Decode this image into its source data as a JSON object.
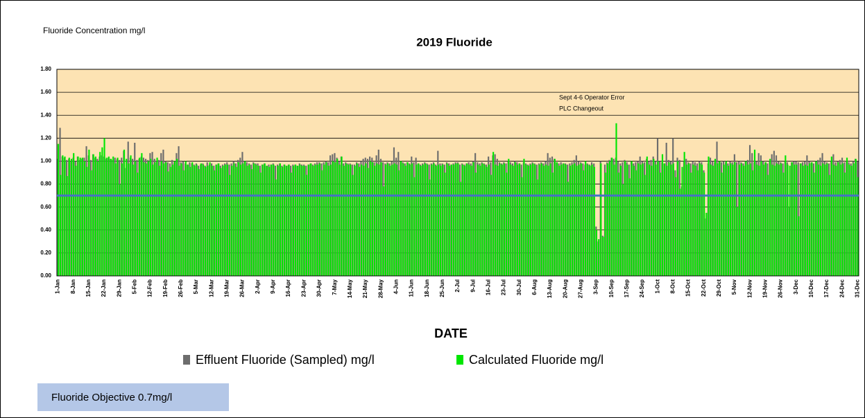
{
  "chart_data": {
    "type": "bar",
    "title": "2019 Fluoride",
    "y_label": "Fluoride Concentration mg/l",
    "x_label": "DATE",
    "annotations": [
      "Sept 4-6 Operator  Error",
      "PLC Changeout"
    ],
    "objective": {
      "label": "Fluoride Objective 0.7mg/l",
      "value": 0.7,
      "color": "#4472c4"
    },
    "ylim": [
      0,
      1.8
    ],
    "yticks": [
      {
        "value": 0,
        "label": "0.00"
      },
      {
        "value": 0.2,
        "label": "0.20"
      },
      {
        "value": 0.4,
        "label": "0.40"
      },
      {
        "value": 0.6,
        "label": "0.60"
      },
      {
        "value": 0.8,
        "label": "0.80"
      },
      {
        "value": 1,
        "label": "1.00"
      },
      {
        "value": 1.2,
        "label": "1.20"
      },
      {
        "value": 1.4,
        "label": "1.40"
      },
      {
        "value": 1.6,
        "label": "1.60"
      },
      {
        "value": 1.8,
        "label": "1.80"
      }
    ],
    "grid": true,
    "categories": [
      "1-Jan",
      null,
      null,
      null,
      null,
      null,
      null,
      "8-Jan",
      null,
      null,
      null,
      null,
      null,
      null,
      "15-Jan",
      null,
      null,
      null,
      null,
      null,
      null,
      "22-Jan",
      null,
      null,
      null,
      null,
      null,
      null,
      "29-Jan",
      null,
      null,
      null,
      null,
      null,
      null,
      "5-Feb",
      null,
      null,
      null,
      null,
      null,
      null,
      "12-Feb",
      null,
      null,
      null,
      null,
      null,
      null,
      "19-Feb",
      null,
      null,
      null,
      null,
      null,
      null,
      "26-Feb",
      null,
      null,
      null,
      null,
      null,
      null,
      "5-Mar",
      null,
      null,
      null,
      null,
      null,
      null,
      "12-Mar",
      null,
      null,
      null,
      null,
      null,
      null,
      "19-Mar",
      null,
      null,
      null,
      null,
      null,
      null,
      "26-Mar",
      null,
      null,
      null,
      null,
      null,
      null,
      "2-Apr",
      null,
      null,
      null,
      null,
      null,
      null,
      "9-Apr",
      null,
      null,
      null,
      null,
      null,
      null,
      "16-Apr",
      null,
      null,
      null,
      null,
      null,
      null,
      "23-Apr",
      null,
      null,
      null,
      null,
      null,
      null,
      "30-Apr",
      null,
      null,
      null,
      null,
      null,
      null,
      "7-May",
      null,
      null,
      null,
      null,
      null,
      null,
      "14-May",
      null,
      null,
      null,
      null,
      null,
      null,
      "21-May",
      null,
      null,
      null,
      null,
      null,
      null,
      "28-May",
      null,
      null,
      null,
      null,
      null,
      null,
      "4-Jun",
      null,
      null,
      null,
      null,
      null,
      null,
      "11-Jun",
      null,
      null,
      null,
      null,
      null,
      null,
      "18-Jun",
      null,
      null,
      null,
      null,
      null,
      null,
      "25-Jun",
      null,
      null,
      null,
      null,
      null,
      null,
      "2-Jul",
      null,
      null,
      null,
      null,
      null,
      null,
      "9-Jul",
      null,
      null,
      null,
      null,
      null,
      null,
      "16-Jul",
      null,
      null,
      null,
      null,
      null,
      null,
      "23-Jul",
      null,
      null,
      null,
      null,
      null,
      null,
      "30-Jul",
      null,
      null,
      null,
      null,
      null,
      null,
      "6-Aug",
      null,
      null,
      null,
      null,
      null,
      null,
      "13-Aug",
      null,
      null,
      null,
      null,
      null,
      null,
      "20-Aug",
      null,
      null,
      null,
      null,
      null,
      null,
      "27-Aug",
      null,
      null,
      null,
      null,
      null,
      null,
      "3-Sep",
      null,
      null,
      null,
      null,
      null,
      null,
      "10-Sep",
      null,
      null,
      null,
      null,
      null,
      null,
      "17-Sep",
      null,
      null,
      null,
      null,
      null,
      null,
      "24-Sep",
      null,
      null,
      null,
      null,
      null,
      null,
      "1-Oct",
      null,
      null,
      null,
      null,
      null,
      null,
      "8-Oct",
      null,
      null,
      null,
      null,
      null,
      null,
      "15-Oct",
      null,
      null,
      null,
      null,
      null,
      null,
      "22-Oct",
      null,
      null,
      null,
      null,
      null,
      null,
      "29-Oct",
      null,
      null,
      null,
      null,
      null,
      null,
      "5-Nov",
      null,
      null,
      null,
      null,
      null,
      null,
      "12-Nov",
      null,
      null,
      null,
      null,
      null,
      null,
      "19-Nov",
      null,
      null,
      null,
      null,
      null,
      null,
      "26-Nov",
      null,
      null,
      null,
      null,
      null,
      null,
      "3-Dec",
      null,
      null,
      null,
      null,
      null,
      null,
      "10-Dec",
      null,
      null,
      null,
      null,
      null,
      null,
      "17-Dec",
      null,
      null,
      null,
      null,
      null,
      null,
      "24-Dec",
      null,
      null,
      null,
      null,
      null,
      null,
      "31-Dec"
    ],
    "series": [
      {
        "name": "Effluent Fluoride (Sampled) mg/l",
        "color": "#6d6d6d",
        "values": [
          1.02,
          1.29,
          1.04,
          1.03,
          1.01,
          1.02,
          1.0,
          1.03,
          1.0,
          1.04,
          1.01,
          1.02,
          1.03,
          1.13,
          1.05,
          1.01,
          1.06,
          1.03,
          1.02,
          1.04,
          1.05,
          1.04,
          1.02,
          1.03,
          1.02,
          1.01,
          1.03,
          1.02,
          1.01,
          1.03,
          1.09,
          0.94,
          1.17,
          1.03,
          1.02,
          1.16,
          1.01,
          1.02,
          1.04,
          1.03,
          1.02,
          1.01,
          1.07,
          1.08,
          1.02,
          1.0,
          1.01,
          1.07,
          1.1,
          1.0,
          0.99,
          0.98,
          1.01,
          0.99,
          1.07,
          1.13,
          0.99,
          1.0,
          0.98,
          0.97,
          0.99,
          0.98,
          0.97,
          0.98,
          0.96,
          0.97,
          0.98,
          0.96,
          0.99,
          0.97,
          0.98,
          0.96,
          0.97,
          0.98,
          0.96,
          0.97,
          0.98,
          0.99,
          0.97,
          0.98,
          1.0,
          0.98,
          1.01,
          1.03,
          1.08,
          1.0,
          0.99,
          0.98,
          0.97,
          0.99,
          0.98,
          0.98,
          0.96,
          0.97,
          0.98,
          0.96,
          0.97,
          0.97,
          0.98,
          0.96,
          0.97,
          0.98,
          0.96,
          0.97,
          0.96,
          0.97,
          0.96,
          0.97,
          0.97,
          0.96,
          0.98,
          0.97,
          0.97,
          0.96,
          0.97,
          0.98,
          0.97,
          0.98,
          0.99,
          0.99,
          0.98,
          0.99,
          1.0,
          0.99,
          1.05,
          1.06,
          1.07,
          1.03,
          1.0,
          1.04,
          0.98,
          0.99,
          0.98,
          0.98,
          0.97,
          0.97,
          0.99,
          0.98,
          1.0,
          1.02,
          1.03,
          1.02,
          1.04,
          1.03,
          0.99,
          1.05,
          1.1,
          1.02,
          0.99,
          0.98,
          0.99,
          0.98,
          1.0,
          1.12,
          1.03,
          1.08,
          1.0,
          0.99,
          0.98,
          0.99,
          0.98,
          1.04,
          0.99,
          1.03,
          0.98,
          0.97,
          0.98,
          0.99,
          0.98,
          0.97,
          0.98,
          0.99,
          0.97,
          1.09,
          0.98,
          0.98,
          0.97,
          0.99,
          0.98,
          0.97,
          0.98,
          0.99,
          0.99,
          0.97,
          0.98,
          0.97,
          0.98,
          0.99,
          0.98,
          1.0,
          1.07,
          0.99,
          0.98,
          0.99,
          0.98,
          0.97,
          1.04,
          0.99,
          1.05,
          1.06,
          1.02,
          0.99,
          0.98,
          0.99,
          0.98,
          1.0,
          0.99,
          0.98,
          1.0,
          0.99,
          0.98,
          0.97,
          0.99,
          0.98,
          0.97,
          0.98,
          0.99,
          0.98,
          0.97,
          0.98,
          0.99,
          0.98,
          1.0,
          1.07,
          1.03,
          1.04,
          1.02,
          0.99,
          0.98,
          0.99,
          0.98,
          0.98,
          0.97,
          0.98,
          0.99,
          1.01,
          1.05,
          1.0,
          0.99,
          0.98,
          0.97,
          0.98,
          0.97,
          0.99,
          0.98,
          0.43,
          0.3,
          1.0,
          0.35,
          0.97,
          0.99,
          1.01,
          1.03,
          1.02,
          1.03,
          1.0,
          0.98,
          0.99,
          1.01,
          0.99,
          0.97,
          1.0,
          0.98,
          0.99,
          1.0,
          1.04,
          1.0,
          0.99,
          1.02,
          1.0,
          1.01,
          1.04,
          1.0,
          1.2,
          1.0,
          0.99,
          0.98,
          1.16,
          1.01,
          1.0,
          1.2,
          0.92,
          1.03,
          1.01,
          0.78,
          1.0,
          1.02,
          0.99,
          0.98,
          1.0,
          0.99,
          0.98,
          1.0,
          0.99,
          0.92,
          0.5,
          0.98,
          1.03,
          1.0,
          0.99,
          1.17,
          1.0,
          0.99,
          1.0,
          0.99,
          0.98,
          1.0,
          0.99,
          1.06,
          0.99,
          1.0,
          0.99,
          0.98,
          1.0,
          1.01,
          1.14,
          1.07,
          0.99,
          1.0,
          1.07,
          1.05,
          1.0,
          0.99,
          0.98,
          1.0,
          1.06,
          1.09,
          1.05,
          1.0,
          0.99,
          0.98,
          1.0,
          0.99,
          0.6,
          0.99,
          1.0,
          1.0,
          0.99,
          0.98,
          0.99,
          1.0,
          1.05,
          1.0,
          0.99,
          0.98,
          1.0,
          1.01,
          1.03,
          1.07,
          1.0,
          0.99,
          0.98,
          1.0,
          1.06,
          0.99,
          1.0,
          1.01,
          1.03,
          0.99,
          1.0,
          0.99,
          0.98,
          1.0,
          1.02,
          1.0
        ]
      },
      {
        "name": "Calculated Fluoride mg/l",
        "color": "#00e600",
        "values": [
          1.15,
          0.88,
          1.05,
          1.04,
          0.87,
          1.03,
          1.02,
          1.07,
          0.96,
          1.04,
          1.03,
          1.03,
          1.0,
          0.95,
          1.1,
          0.92,
          1.06,
          1.04,
          1.0,
          1.08,
          1.12,
          1.2,
          1.03,
          1.04,
          1.02,
          1.04,
          0.98,
          1.03,
          0.8,
          0.98,
          1.1,
          1.02,
          0.98,
          1.05,
          0.97,
          1.0,
          0.9,
          1.03,
          1.07,
          0.99,
          0.98,
          1.0,
          1.02,
          0.97,
          0.99,
          1.03,
          0.96,
          1.0,
          0.98,
          0.99,
          0.91,
          0.95,
          0.97,
          1.0,
          1.02,
          0.96,
          0.98,
          0.92,
          1.0,
          0.97,
          0.95,
          0.99,
          0.96,
          0.97,
          0.93,
          0.98,
          0.97,
          0.95,
          0.96,
          0.99,
          0.96,
          0.92,
          0.97,
          0.98,
          0.94,
          0.96,
          0.97,
          0.97,
          0.88,
          0.96,
          0.98,
          0.95,
          0.99,
          0.97,
          0.98,
          1.0,
          0.96,
          0.97,
          0.93,
          0.98,
          0.97,
          0.96,
          0.9,
          0.97,
          0.98,
          0.96,
          0.95,
          0.97,
          0.97,
          0.84,
          0.96,
          0.98,
          0.95,
          0.97,
          0.96,
          0.97,
          0.9,
          0.96,
          0.97,
          0.96,
          0.97,
          0.96,
          0.96,
          0.88,
          0.97,
          0.98,
          0.96,
          0.97,
          0.97,
          0.98,
          0.92,
          0.97,
          0.99,
          0.96,
          0.97,
          1.0,
          0.99,
          1.02,
          0.97,
          1.04,
          0.96,
          0.98,
          0.97,
          0.97,
          0.88,
          0.96,
          0.98,
          0.95,
          0.97,
          0.96,
          0.98,
          0.94,
          1.0,
          0.99,
          0.96,
          0.98,
          0.97,
          0.99,
          0.78,
          0.97,
          0.98,
          0.96,
          0.97,
          0.98,
          0.97,
          0.92,
          1.0,
          0.98,
          0.96,
          0.99,
          0.97,
          0.98,
          0.86,
          0.97,
          0.98,
          0.96,
          0.97,
          0.98,
          0.97,
          0.84,
          0.97,
          0.98,
          0.96,
          0.97,
          0.96,
          0.97,
          0.9,
          0.98,
          0.96,
          0.97,
          0.97,
          0.98,
          0.98,
          0.82,
          0.97,
          0.96,
          0.98,
          0.97,
          0.96,
          0.99,
          0.9,
          0.97,
          0.96,
          0.98,
          0.97,
          0.95,
          0.97,
          0.88,
          1.08,
          0.97,
          0.96,
          0.98,
          0.97,
          0.98,
          0.9,
          1.02,
          0.97,
          0.96,
          0.99,
          0.97,
          0.98,
          0.86,
          1.02,
          0.97,
          0.96,
          0.97,
          0.98,
          0.97,
          0.84,
          0.97,
          0.98,
          0.96,
          0.97,
          0.96,
          0.98,
          0.9,
          1.02,
          0.99,
          0.96,
          0.97,
          0.98,
          0.97,
          0.82,
          0.96,
          0.97,
          0.98,
          0.96,
          0.97,
          0.98,
          0.92,
          1.0,
          0.97,
          0.96,
          0.97,
          0.95,
          0.4,
          0.32,
          0.98,
          0.34,
          0.9,
          0.98,
          1.0,
          1.03,
          0.97,
          1.33,
          0.9,
          0.96,
          0.8,
          1.0,
          0.97,
          0.85,
          1.0,
          0.96,
          0.92,
          0.98,
          0.97,
          0.98,
          0.88,
          1.04,
          0.97,
          0.96,
          1.02,
          0.97,
          1.0,
          0.9,
          1.06,
          0.98,
          0.96,
          0.99,
          0.97,
          0.98,
          0.86,
          1.0,
          0.76,
          0.95,
          1.08,
          0.97,
          0.98,
          0.9,
          0.97,
          0.96,
          0.92,
          0.98,
          0.97,
          0.9,
          0.55,
          1.04,
          0.97,
          0.96,
          1.02,
          0.98,
          1.0,
          0.9,
          0.97,
          1.0,
          0.96,
          0.98,
          0.97,
          0.99,
          0.6,
          0.97,
          0.98,
          0.96,
          1.0,
          0.97,
          0.98,
          0.92,
          1.1,
          0.97,
          0.96,
          1.0,
          0.97,
          0.99,
          0.88,
          1.02,
          0.97,
          0.96,
          0.98,
          0.97,
          0.98,
          0.9,
          1.05,
          0.97,
          0.96,
          0.99,
          0.97,
          0.97,
          0.52,
          0.98,
          0.96,
          0.97,
          0.96,
          0.98,
          0.99,
          0.9,
          1.0,
          0.97,
          0.96,
          0.98,
          0.97,
          0.98,
          0.88,
          1.04,
          0.97,
          0.96,
          0.99,
          0.97,
          0.98,
          0.9,
          1.03,
          0.97,
          0.96,
          0.98,
          1.02,
          0.86
        ]
      }
    ]
  }
}
